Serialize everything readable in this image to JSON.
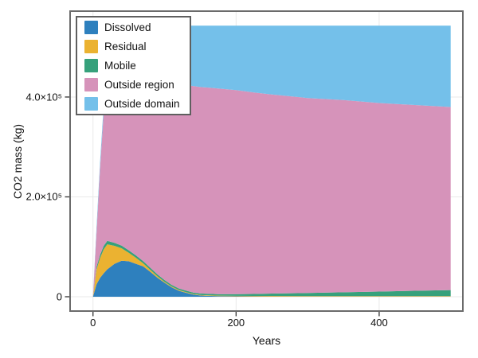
{
  "figure": {
    "background": "#ffffff",
    "frame_color": "#6b6b6b",
    "grid_color": "#e9e9e9",
    "tick_color": "#333333",
    "legend_border_color": "#5f5f5f"
  },
  "chart_data": {
    "type": "area",
    "stacked": true,
    "title": "",
    "xlabel": "Years",
    "ylabel": "CO2 mass (kg)",
    "xlim": [
      -32,
      517
    ],
    "ylim": [
      -28700,
      572000
    ],
    "grid": true,
    "legend_position": "upper left",
    "x_tick_values": [
      0,
      200,
      400
    ],
    "x_tick_labels": [
      "0",
      "200",
      "400"
    ],
    "y_tick_values": [
      0,
      200000,
      400000
    ],
    "y_tick_labels": [
      "0",
      "2.0×10⁵",
      "4.0×10⁵"
    ],
    "x": [
      0,
      5,
      10,
      15,
      20,
      30,
      40,
      50,
      60,
      70,
      80,
      90,
      100,
      110,
      120,
      130,
      140,
      150,
      160,
      175,
      200,
      225,
      250,
      300,
      350,
      400,
      450,
      500
    ],
    "series": [
      {
        "name": "Dissolved",
        "color": "#2E80BE",
        "values": [
          0,
          25000,
          38000,
          47000,
          55000,
          66000,
          72000,
          71000,
          66000,
          61000,
          50000,
          38000,
          28000,
          19000,
          12000,
          8000,
          4500,
          2500,
          1800,
          1200,
          800,
          600,
          500,
          400,
          400,
          400,
          400,
          400
        ]
      },
      {
        "name": "Residual",
        "color": "#EBB231",
        "values": [
          0,
          30000,
          40000,
          48000,
          50000,
          36000,
          25000,
          17000,
          12000,
          6000,
          4000,
          3000,
          2000,
          1500,
          1500,
          1200,
          1000,
          1000,
          1000,
          1000,
          1000,
          1000,
          1000,
          1000,
          1000,
          1000,
          1000,
          1000
        ]
      },
      {
        "name": "Mobile",
        "color": "#36A17B",
        "values": [
          0,
          5000,
          6000,
          7000,
          7000,
          6000,
          5500,
          5000,
          4800,
          4500,
          4200,
          3800,
          3500,
          3200,
          3000,
          3000,
          3000,
          3000,
          3000,
          3100,
          3500,
          4000,
          4800,
          6000,
          7500,
          9000,
          10500,
          12000
        ]
      },
      {
        "name": "Outside region",
        "color": "#D693BA",
        "values": [
          0,
          70000,
          176000,
          268000,
          293000,
          322000,
          332500,
          341000,
          350200,
          360500,
          372800,
          385200,
          394500,
          403300,
          408500,
          411800,
          413500,
          413500,
          413200,
          411700,
          408700,
          403400,
          398700,
          390600,
          385100,
          377600,
          372100,
          366600
        ]
      },
      {
        "name": "Outside domain",
        "color": "#74C0EA",
        "values": [
          0,
          10000,
          12000,
          15000,
          45000,
          75000,
          85000,
          94000,
          99000,
          103000,
          106000,
          109000,
          113000,
          115000,
          118000,
          119000,
          121000,
          123000,
          124000,
          126000,
          129000,
          134000,
          138000,
          145000,
          149000,
          155000,
          159000,
          163000
        ]
      }
    ]
  }
}
